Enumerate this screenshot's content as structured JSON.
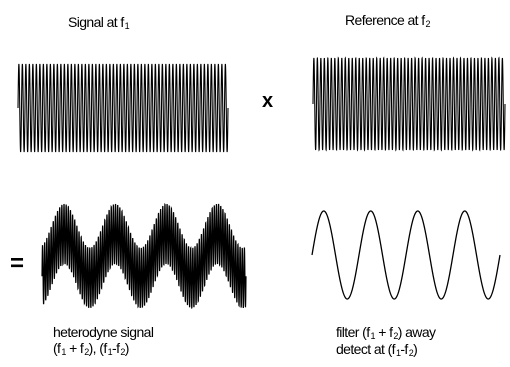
{
  "labels": {
    "signal": {
      "main": "Signal at f",
      "sub": "1"
    },
    "reference": {
      "main": "Reference at f",
      "sub": "2"
    },
    "heterodyne": {
      "line1": "heterodyne signal",
      "line2": {
        "a": "(f",
        "a_sub": "1",
        "b": "+ f",
        "b_sub": "2",
        "c": "), (f",
        "c_sub": "1",
        "d": "-f",
        "d_sub": "2",
        "e": ")"
      }
    },
    "filter": {
      "line1_a": "filter (f",
      "line1_a_sub": "1",
      "line1_b": "+ f",
      "line1_b_sub": "2",
      "line1_c": ") away",
      "line2_a": "detect at (f",
      "line2_a_sub": "1",
      "line2_b": "-f",
      "line2_b_sub": "2",
      "line2_c": ")"
    }
  },
  "operators": {
    "multiply": "x",
    "equals": "="
  },
  "waves": {
    "signal_cycles": 60,
    "reference_cycles": 55,
    "beat_cycles": 4,
    "difference_cycles": 4
  },
  "colors": {
    "stroke": "#000000",
    "background": "#ffffff"
  }
}
